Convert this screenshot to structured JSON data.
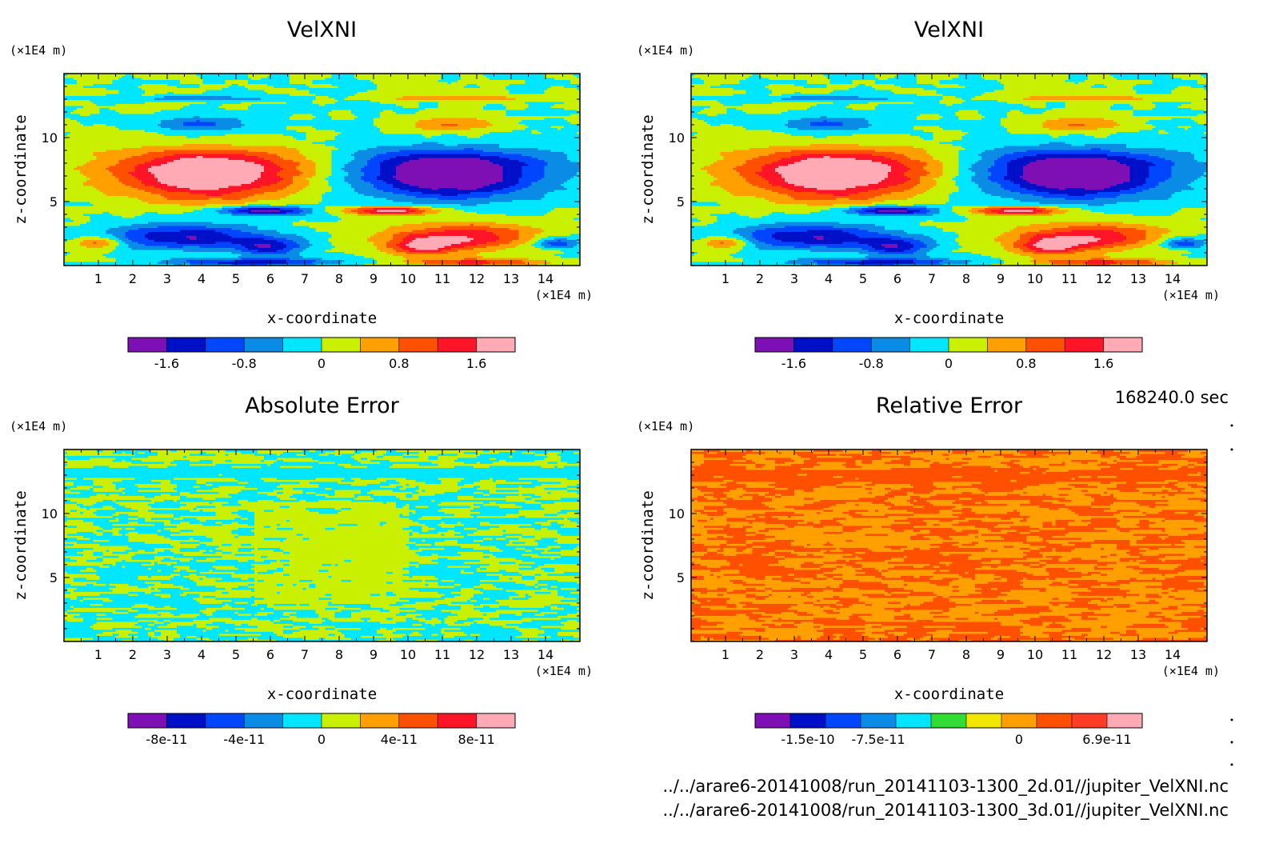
{
  "chart_data": [
    {
      "type": "heatmap",
      "title": "VelXNI",
      "xlabel": "x-coordinate",
      "ylabel": "z-coordinate",
      "x_unit": "(×1E4 m)",
      "y_unit": "(×1E4 m)",
      "x_ticks": [
        "1",
        "2",
        "3",
        "4",
        "5",
        "6",
        "7",
        "8",
        "9",
        "10",
        "11",
        "12",
        "13",
        "14"
      ],
      "y_ticks": [
        "5",
        "10"
      ],
      "xlim": [
        0,
        15
      ],
      "ylim": [
        0,
        15
      ],
      "colorbar": {
        "colors": [
          "#7d0fb4",
          "#0010c8",
          "#0046ff",
          "#0a8ce6",
          "#00e6ff",
          "#c8f000",
          "#ffa000",
          "#ff5000",
          "#ff1428",
          "#ffaab4"
        ],
        "labels": [
          "-1.6",
          "-0.8",
          "0",
          "0.8",
          "1.6"
        ],
        "label_positions": [
          1,
          3,
          5,
          7,
          9
        ]
      },
      "pattern": "velocity"
    },
    {
      "type": "heatmap",
      "title": "VelXNI",
      "xlabel": "x-coordinate",
      "ylabel": "z-coordinate",
      "x_unit": "(×1E4 m)",
      "y_unit": "(×1E4 m)",
      "x_ticks": [
        "1",
        "2",
        "3",
        "4",
        "5",
        "6",
        "7",
        "8",
        "9",
        "10",
        "11",
        "12",
        "13",
        "14"
      ],
      "y_ticks": [
        "5",
        "10"
      ],
      "xlim": [
        0,
        15
      ],
      "ylim": [
        0,
        15
      ],
      "colorbar": {
        "colors": [
          "#7d0fb4",
          "#0010c8",
          "#0046ff",
          "#0a8ce6",
          "#00e6ff",
          "#c8f000",
          "#ffa000",
          "#ff5000",
          "#ff1428",
          "#ffaab4"
        ],
        "labels": [
          "-1.6",
          "-0.8",
          "0",
          "0.8",
          "1.6"
        ],
        "label_positions": [
          1,
          3,
          5,
          7,
          9
        ]
      },
      "pattern": "velocity"
    },
    {
      "type": "heatmap",
      "title": "Absolute Error",
      "xlabel": "x-coordinate",
      "ylabel": "z-coordinate",
      "x_unit": "(×1E4 m)",
      "y_unit": "(×1E4 m)",
      "x_ticks": [
        "1",
        "2",
        "3",
        "4",
        "5",
        "6",
        "7",
        "8",
        "9",
        "10",
        "11",
        "12",
        "13",
        "14"
      ],
      "y_ticks": [
        "5",
        "10"
      ],
      "xlim": [
        0,
        15
      ],
      "ylim": [
        0,
        15
      ],
      "colorbar": {
        "colors": [
          "#7d0fb4",
          "#0010c8",
          "#0046ff",
          "#0a8ce6",
          "#00e6ff",
          "#c8f000",
          "#ffa000",
          "#ff5000",
          "#ff1428",
          "#ffaab4"
        ],
        "labels": [
          "-8e-11",
          "-4e-11",
          "0",
          "4e-11",
          "8e-11"
        ],
        "label_positions": [
          1,
          3,
          5,
          7,
          9
        ]
      },
      "pattern": "abserr"
    },
    {
      "type": "heatmap",
      "title": "Relative Error",
      "xlabel": "x-coordinate",
      "ylabel": "z-coordinate",
      "x_unit": "(×1E4 m)",
      "y_unit": "(×1E4 m)",
      "x_ticks": [
        "1",
        "2",
        "3",
        "4",
        "5",
        "6",
        "7",
        "8",
        "9",
        "10",
        "11",
        "12",
        "13",
        "14"
      ],
      "y_ticks": [
        "5",
        "10"
      ],
      "xlim": [
        0,
        15
      ],
      "ylim": [
        0,
        15
      ],
      "colorbar": {
        "colors": [
          "#7d0fb4",
          "#0010c8",
          "#0046ff",
          "#0a8ce6",
          "#00e6ff",
          "#32dc32",
          "#f0e600",
          "#ffa000",
          "#ff5000",
          "#ff3c28",
          "#ffaab4"
        ],
        "labels": [
          "-1.5e-10",
          "-7.5e-11",
          "0",
          "6.9e-11"
        ],
        "label_positions": [
          1.5,
          3.5,
          7.5,
          10
        ]
      },
      "pattern": "relerr"
    }
  ],
  "time_label": "168240.0 sec",
  "file_lines": [
    "../../arare6-20141008/run_20141103-1300_2d.01//jupiter_VelXNI.nc",
    "../../arare6-20141008/run_20141103-1300_3d.01//jupiter_VelXNI.nc"
  ]
}
